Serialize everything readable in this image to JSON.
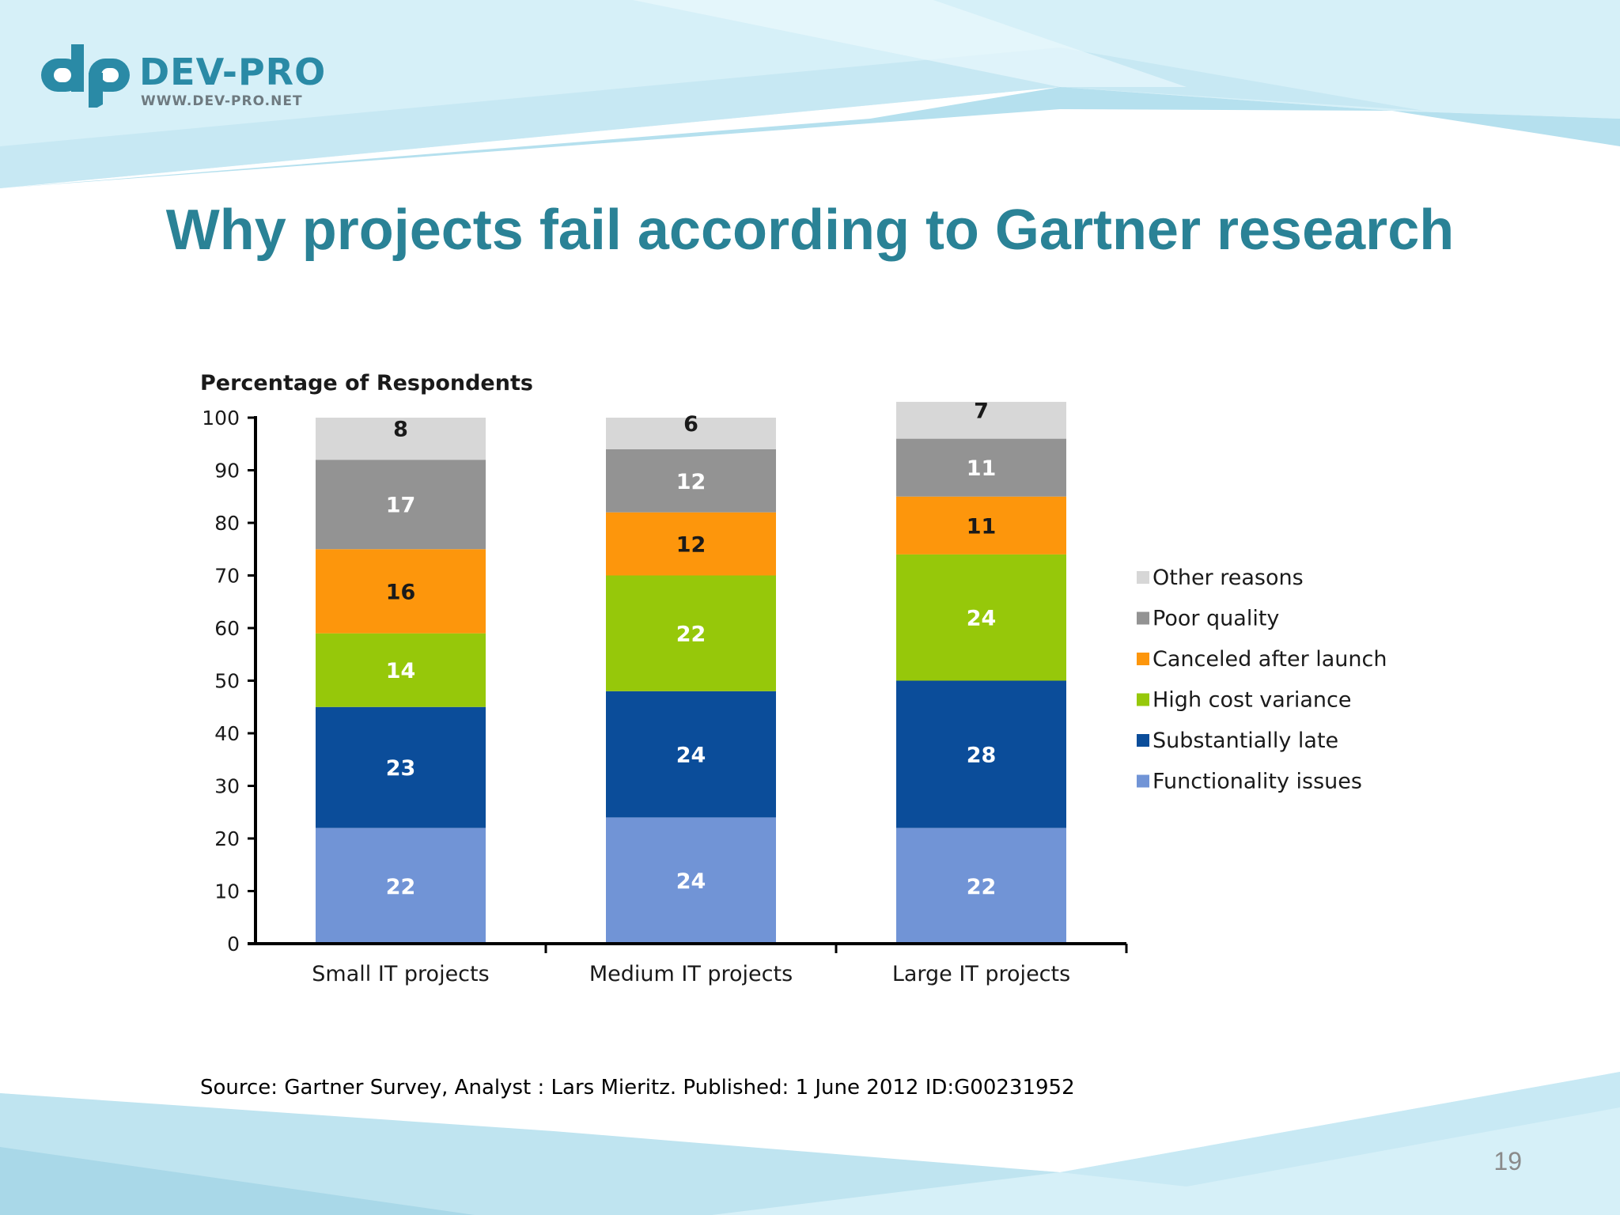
{
  "logo": {
    "name": "DEV-PRO",
    "url": "WWW.DEV-PRO.NET"
  },
  "slide": {
    "title": "Why projects fail according to Gartner research",
    "source": "Source: Gartner Survey, Analyst : Lars Mieritz. Published: 1 June 2012 ID:G00231952",
    "page_number": "19"
  },
  "chart_data": {
    "type": "bar",
    "stacked": true,
    "title": "",
    "xlabel": "",
    "ylabel": "Percentage of Respondents",
    "ylim": [
      0,
      100
    ],
    "yticks": [
      0,
      10,
      20,
      30,
      40,
      50,
      60,
      70,
      80,
      90,
      100
    ],
    "categories": [
      "Small IT projects",
      "Medium IT projects",
      "Large IT projects"
    ],
    "legend_position": "right",
    "series": [
      {
        "name": "Functionality issues",
        "values": [
          22,
          24,
          22
        ],
        "color": "#7194d6"
      },
      {
        "name": "Substantially late",
        "values": [
          23,
          24,
          28
        ],
        "color": "#0b4d9a"
      },
      {
        "name": "High cost variance",
        "values": [
          14,
          22,
          24
        ],
        "color": "#96c80a"
      },
      {
        "name": "Canceled after launch",
        "values": [
          16,
          12,
          11
        ],
        "color": "#fd960c"
      },
      {
        "name": "Poor quality",
        "values": [
          17,
          12,
          11
        ],
        "color": "#939393"
      },
      {
        "name": "Other reasons",
        "values": [
          8,
          6,
          7
        ],
        "color": "#d7d7d7"
      }
    ]
  }
}
